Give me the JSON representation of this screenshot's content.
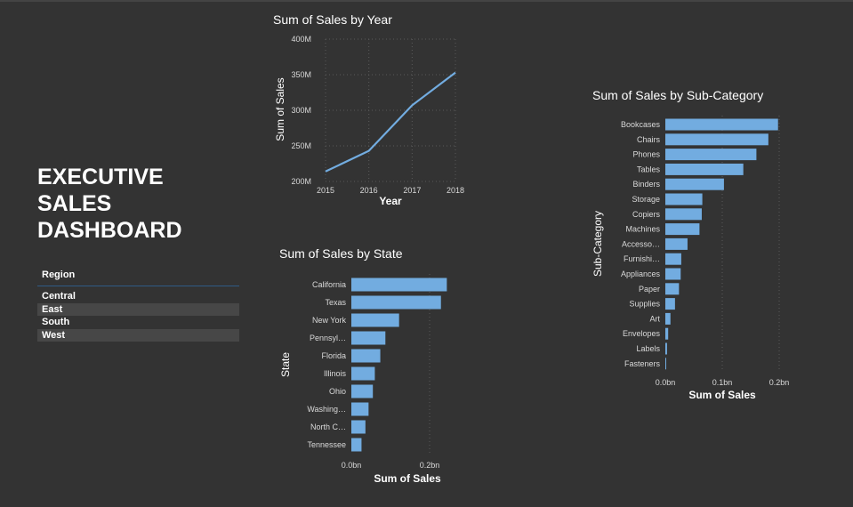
{
  "dashboard": {
    "title_lines": [
      "EXECUTIVE",
      "SALES",
      "DASHBOARD"
    ]
  },
  "slicer": {
    "header": "Region",
    "items": [
      "Central",
      "East",
      "South",
      "West"
    ]
  },
  "colors": {
    "background": "#333333",
    "bar": "#72ace0",
    "line": "#72ace0",
    "grid": "#5a5a5a"
  },
  "chart_data": [
    {
      "id": "year",
      "type": "line",
      "title": "Sum of Sales by Year",
      "xlabel": "Year",
      "ylabel": "Sum of Sales",
      "x": [
        2015,
        2016,
        2017,
        2018
      ],
      "x_tick_labels": [
        "2015",
        "2016",
        "2017",
        "2018"
      ],
      "series": [
        {
          "values": [
            214,
            243,
            307,
            353
          ]
        }
      ],
      "ylim": [
        200,
        400
      ],
      "y_ticks": [
        200,
        250,
        300,
        350,
        400
      ],
      "y_tick_labels": [
        "200M",
        "250M",
        "300M",
        "350M",
        "400M"
      ],
      "grid": true
    },
    {
      "id": "state",
      "type": "bar",
      "orientation": "horizontal",
      "title": "Sum of Sales by State",
      "xlabel": "Sum of Sales",
      "ylabel": "State",
      "categories": [
        "California",
        "Texas",
        "New York",
        "Pennsyl…",
        "Florida",
        "Illinois",
        "Ohio",
        "Washing…",
        "North C…",
        "Tennessee"
      ],
      "values": [
        0.244,
        0.229,
        0.122,
        0.087,
        0.074,
        0.06,
        0.055,
        0.044,
        0.036,
        0.026
      ],
      "xlim": [
        0,
        0.25
      ],
      "x_ticks": [
        0,
        0.2
      ],
      "x_tick_labels": [
        "0.0bn",
        "0.2bn"
      ],
      "grid": true
    },
    {
      "id": "subcategory",
      "type": "bar",
      "orientation": "horizontal",
      "title": "Sum of Sales by Sub-Category",
      "xlabel": "Sum of Sales",
      "ylabel": "Sub-Category",
      "categories": [
        "Bookcases",
        "Chairs",
        "Phones",
        "Tables",
        "Binders",
        "Storage",
        "Copiers",
        "Machines",
        "Accesso…",
        "Furnishi…",
        "Appliances",
        "Paper",
        "Supplies",
        "Art",
        "Envelopes",
        "Labels",
        "Fasteners"
      ],
      "values": [
        0.198,
        0.181,
        0.16,
        0.137,
        0.103,
        0.065,
        0.064,
        0.06,
        0.039,
        0.028,
        0.027,
        0.024,
        0.017,
        0.009,
        0.005,
        0.003,
        0.001
      ],
      "xlim": [
        0,
        0.2
      ],
      "x_ticks": [
        0,
        0.1,
        0.2
      ],
      "x_tick_labels": [
        "0.0bn",
        "0.1bn",
        "0.2bn"
      ],
      "grid": true
    }
  ]
}
